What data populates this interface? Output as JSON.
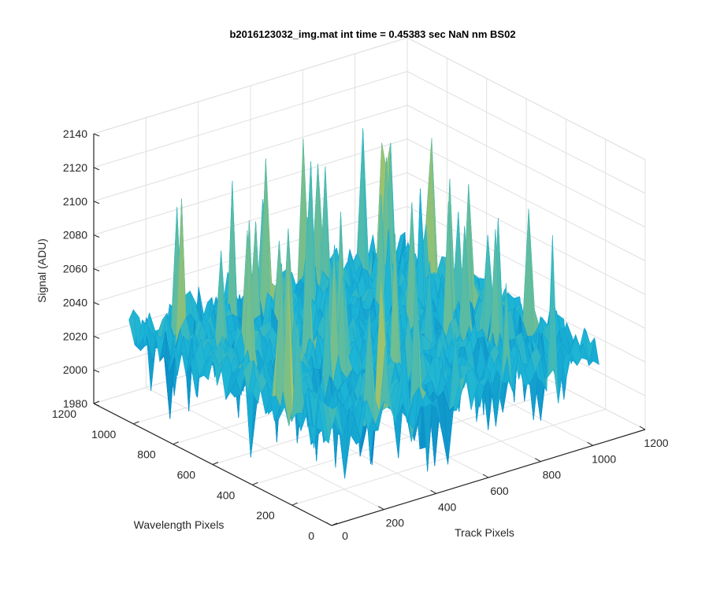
{
  "chart_data": {
    "type": "surface",
    "title": "b2016123032_img.mat int time = 0.45383 sec  NaN nm BS02",
    "xlabel": "Track Pixels",
    "ylabel": "Wavelength Pixels",
    "zlabel": "Signal (ADU)",
    "xlim": [
      0,
      1200
    ],
    "ylim": [
      0,
      1200
    ],
    "zlim": [
      1980,
      2140
    ],
    "x_ticks": [
      "0",
      "200",
      "400",
      "600",
      "800",
      "1000",
      "1200"
    ],
    "y_ticks": [
      "0",
      "200",
      "400",
      "600",
      "800",
      "1000",
      "1200"
    ],
    "z_ticks": [
      "1980",
      "2000",
      "2020",
      "2040",
      "2060",
      "2080",
      "2100",
      "2120",
      "2140"
    ],
    "grid": true,
    "colormap": "parula",
    "surface": {
      "x_extent": [
        1,
        1024
      ],
      "y_extent": [
        1,
        1024
      ],
      "z_mean": 2035,
      "z_min": 1990,
      "z_max": 2125
    }
  },
  "colors": {
    "axis": "#262626",
    "grid": "#e0e0e0",
    "surface_low": "#0072bd",
    "surface_mid": "#1cb5d6",
    "surface_high": "#d9c83c"
  }
}
